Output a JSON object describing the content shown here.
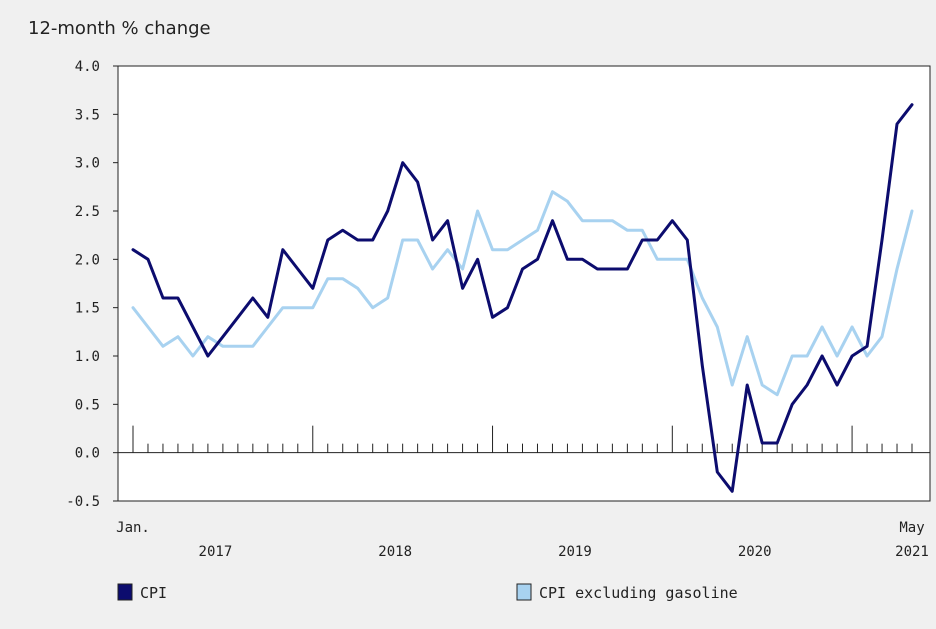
{
  "chart_data": {
    "type": "line",
    "ylabel": "12-month % change",
    "ylim": [
      -0.5,
      4.0
    ],
    "yticks": [
      "4.0",
      "3.5",
      "3.0",
      "2.5",
      "2.0",
      "1.5",
      "1.0",
      "0.5",
      "0.0",
      "-0.5"
    ],
    "x_start_label": "Jan.",
    "x_end_label": "May",
    "year_labels": [
      "2017",
      "2018",
      "2019",
      "2020",
      "2021"
    ],
    "grid": false,
    "legend_position": "bottom",
    "colors": {
      "CPI": "#0c0c6e",
      "CPI excluding gasoline": "#a8d2f0"
    },
    "series": [
      {
        "name": "CPI",
        "values": [
          2.1,
          2.0,
          1.6,
          1.6,
          1.3,
          1.0,
          1.2,
          1.4,
          1.6,
          1.4,
          2.1,
          1.9,
          1.7,
          2.2,
          2.3,
          2.2,
          2.2,
          2.5,
          3.0,
          2.8,
          2.2,
          2.4,
          1.7,
          2.0,
          1.4,
          1.5,
          1.9,
          2.0,
          2.4,
          2.0,
          2.0,
          1.9,
          1.9,
          1.9,
          2.2,
          2.2,
          2.4,
          2.2,
          0.9,
          -0.2,
          -0.4,
          0.7,
          0.1,
          0.1,
          0.5,
          0.7,
          1.0,
          0.7,
          1.0,
          1.1,
          2.2,
          3.4,
          3.6
        ]
      },
      {
        "name": "CPI excluding gasoline",
        "values": [
          1.5,
          1.3,
          1.1,
          1.2,
          1.0,
          1.2,
          1.1,
          1.1,
          1.1,
          1.3,
          1.5,
          1.5,
          1.5,
          1.8,
          1.8,
          1.7,
          1.5,
          1.6,
          2.2,
          2.2,
          1.9,
          2.1,
          1.9,
          2.5,
          2.1,
          2.1,
          2.2,
          2.3,
          2.7,
          2.6,
          2.4,
          2.4,
          2.4,
          2.3,
          2.3,
          2.0,
          2.0,
          2.0,
          1.6,
          1.3,
          0.7,
          1.2,
          0.7,
          0.6,
          1.0,
          1.0,
          1.3,
          1.0,
          1.3,
          1.0,
          1.2,
          1.9,
          2.5
        ]
      }
    ]
  }
}
